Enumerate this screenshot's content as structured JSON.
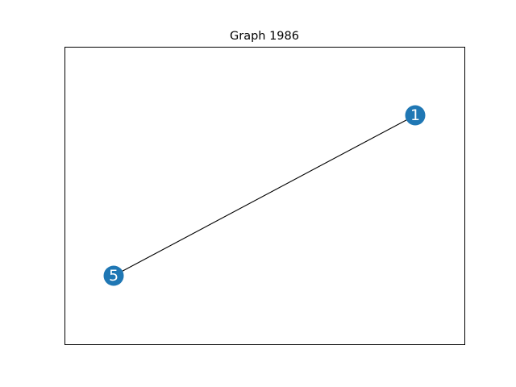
{
  "figure": {
    "title": "Graph 1986"
  },
  "graph": {
    "node_color": "#1f77b4",
    "edge_color": "#000000",
    "label_color": "#ffffff",
    "frame_color": "#000000",
    "nodes": [
      {
        "id": "1",
        "label": "1"
      },
      {
        "id": "5",
        "label": "5"
      }
    ],
    "edges": [
      {
        "source": "1",
        "target": "5"
      }
    ]
  }
}
